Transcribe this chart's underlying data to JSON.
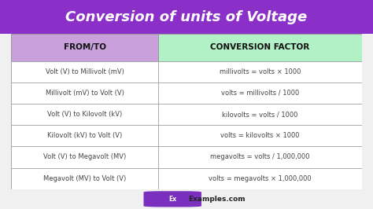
{
  "title": "Conversion of units of Voltage",
  "title_bg_color": "#8B2FC9",
  "title_text_color": "#ffffff",
  "header_col1": "FROM/TO",
  "header_col2": "CONVERSION FACTOR",
  "header_col1_bg": "#C9A0DC",
  "header_col2_bg": "#B2F0C5",
  "outer_bg": "#f0f0f0",
  "table_bg": "#ffffff",
  "border_color": "#999999",
  "rows": [
    [
      "Volt (V) to Millivolt (mV)",
      "millivolts = volts × 1000"
    ],
    [
      "Millivolt (mV) to Volt (V)",
      "volts = millivolts / 1000"
    ],
    [
      "Volt (V) to Kilovolt (kV)",
      "kilovolts = volts / 1000"
    ],
    [
      "Kilovolt (kV) to Volt (V)",
      "volts = kilovolts × 1000"
    ],
    [
      "Volt (V) to Megavolt (MV)",
      "megavolts = volts / 1,000,000"
    ],
    [
      "Megavolt (MV) to Volt (V)",
      "volts = megavolts × 1,000,000"
    ]
  ],
  "row_text_color": "#444444",
  "watermark_text": "Examples.com",
  "watermark_ex_bg": "#7B2FBE",
  "watermark_ex_color": "#ffffff",
  "col_split": 0.42,
  "figsize": [
    4.74,
    2.66
  ],
  "dpi": 100,
  "title_font_size": 13,
  "header_font_size": 7.5,
  "row_font_size": 6.0
}
